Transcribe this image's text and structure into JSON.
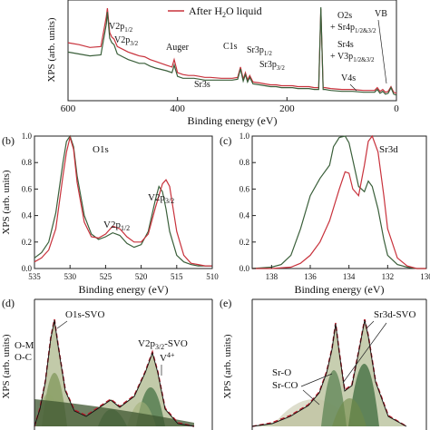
{
  "chart_data": [
    {
      "panel": "a",
      "type": "line",
      "xlabel": "Binding energy (eV)",
      "ylabel": "XPS (arb. units)",
      "xlim": [
        600,
        0
      ],
      "xticks": [
        "600",
        "400",
        "200",
        "0"
      ],
      "legend": "After H2O liquid",
      "series": [
        {
          "name": "After H2O liquid",
          "color": "#c8323c",
          "x": [
            600,
            580,
            560,
            540,
            530,
            528,
            524,
            520,
            516,
            510,
            500,
            490,
            480,
            470,
            460,
            450,
            440,
            420,
            410,
            406,
            400,
            390,
            380,
            370,
            360,
            350,
            340,
            320,
            300,
            290,
            285,
            280,
            276,
            272,
            268,
            262,
            250,
            240,
            230,
            220,
            210,
            200,
            190,
            180,
            170,
            160,
            150,
            142,
            138,
            134,
            130,
            120,
            100,
            80,
            60,
            40,
            35,
            30,
            25,
            20,
            15,
            10,
            5,
            0
          ],
          "y": [
            0.62,
            0.6,
            0.57,
            0.58,
            0.9,
            0.99,
            0.73,
            0.68,
            0.66,
            0.58,
            0.55,
            0.52,
            0.5,
            0.48,
            0.47,
            0.44,
            0.42,
            0.38,
            0.36,
            0.44,
            0.3,
            0.28,
            0.27,
            0.27,
            0.26,
            0.25,
            0.25,
            0.24,
            0.24,
            0.25,
            0.36,
            0.23,
            0.3,
            0.22,
            0.27,
            0.2,
            0.19,
            0.18,
            0.17,
            0.17,
            0.16,
            0.16,
            0.16,
            0.15,
            0.15,
            0.15,
            0.14,
            0.14,
            0.98,
            0.14,
            0.14,
            0.13,
            0.12,
            0.12,
            0.11,
            0.11,
            0.14,
            0.1,
            0.12,
            0.09,
            0.1,
            0.15,
            0.09,
            0.08
          ]
        },
        {
          "name": "",
          "color": "#3a5f3a",
          "x": [
            600,
            580,
            560,
            540,
            530,
            528,
            524,
            520,
            516,
            510,
            500,
            490,
            480,
            470,
            460,
            450,
            440,
            420,
            410,
            406,
            400,
            390,
            380,
            370,
            360,
            350,
            340,
            320,
            300,
            290,
            285,
            280,
            276,
            272,
            268,
            262,
            250,
            240,
            230,
            220,
            210,
            200,
            190,
            180,
            170,
            160,
            150,
            142,
            138,
            134,
            130,
            120,
            100,
            80,
            60,
            40,
            35,
            30,
            25,
            20,
            15,
            10,
            5,
            0
          ],
          "y": [
            0.52,
            0.5,
            0.48,
            0.49,
            0.82,
            0.95,
            0.67,
            0.62,
            0.6,
            0.5,
            0.47,
            0.44,
            0.42,
            0.4,
            0.4,
            0.37,
            0.35,
            0.32,
            0.3,
            0.38,
            0.26,
            0.24,
            0.24,
            0.24,
            0.23,
            0.22,
            0.22,
            0.22,
            0.22,
            0.23,
            0.34,
            0.21,
            0.28,
            0.2,
            0.25,
            0.18,
            0.17,
            0.16,
            0.15,
            0.15,
            0.14,
            0.14,
            0.14,
            0.13,
            0.13,
            0.13,
            0.12,
            0.12,
            1.0,
            0.12,
            0.12,
            0.11,
            0.1,
            0.1,
            0.09,
            0.09,
            0.12,
            0.08,
            0.1,
            0.07,
            0.08,
            0.14,
            0.07,
            0.06
          ]
        }
      ],
      "annotations": [
        "V2p1/2",
        "V2p3/2",
        "Auger",
        "C1s",
        "Sr3s",
        "Sr3p1/2",
        "Sr3p3/2",
        "O2s + Sr4p1/2&3/2",
        "Sr4s + V3p1/2&3/2",
        "V4s",
        "VB"
      ]
    },
    {
      "panel": "b",
      "label": "(b)",
      "type": "line",
      "xlabel": "Binding energy (eV)",
      "ylabel": "XPS (arb. units)",
      "xlim": [
        535,
        510
      ],
      "ylim": [
        0.0,
        1.0
      ],
      "xticks": [
        535,
        530,
        525,
        520,
        515,
        510
      ],
      "yticks": [
        "0.0",
        "0.2",
        "0.4",
        "0.6",
        "0.8",
        "1.0"
      ],
      "annotations": [
        "O1s",
        "V2p1/2",
        "V2p3/2"
      ],
      "series": [
        {
          "name": "",
          "color": "#3a5f3a",
          "x": [
            535,
            534,
            533,
            532,
            531,
            530.5,
            530,
            529.5,
            529,
            528,
            527,
            526,
            525,
            524,
            523,
            522,
            521,
            520,
            519,
            518,
            517.5,
            517,
            516.5,
            516,
            515,
            514,
            513,
            512,
            511,
            510
          ],
          "y": [
            0.08,
            0.12,
            0.2,
            0.42,
            0.8,
            0.96,
            1.0,
            0.92,
            0.7,
            0.4,
            0.26,
            0.22,
            0.24,
            0.27,
            0.25,
            0.19,
            0.16,
            0.18,
            0.28,
            0.52,
            0.62,
            0.58,
            0.45,
            0.28,
            0.1,
            0.05,
            0.03,
            0.02,
            0.02,
            0.02
          ]
        },
        {
          "name": "",
          "color": "#c8323c",
          "x": [
            535,
            534,
            533,
            532,
            531,
            530.5,
            530,
            529.5,
            529,
            528,
            527,
            526,
            525,
            524,
            523,
            522,
            521,
            520,
            519,
            518,
            517,
            516.5,
            516,
            515.5,
            515,
            514,
            513,
            512,
            511,
            510
          ],
          "y": [
            0.05,
            0.08,
            0.14,
            0.3,
            0.7,
            0.88,
            0.99,
            0.9,
            0.65,
            0.35,
            0.24,
            0.23,
            0.26,
            0.32,
            0.3,
            0.24,
            0.2,
            0.2,
            0.26,
            0.46,
            0.64,
            0.67,
            0.62,
            0.45,
            0.28,
            0.1,
            0.04,
            0.03,
            0.02,
            0.02
          ]
        }
      ]
    },
    {
      "panel": "c",
      "label": "(c)",
      "type": "line",
      "xlabel": "Binding energy (eV)",
      "ylabel": "",
      "xlim": [
        139,
        130
      ],
      "ylim": [
        0.0,
        1.0
      ],
      "xticks": [
        138,
        136,
        134,
        132,
        130
      ],
      "yticks": [
        "0.0",
        "0.2",
        "0.4",
        "0.6",
        "0.8",
        "1.0"
      ],
      "annotations": [
        "Sr3d"
      ],
      "series": [
        {
          "name": "",
          "color": "#3a5f3a",
          "x": [
            139,
            138,
            137.5,
            137,
            136.5,
            136,
            135.5,
            135,
            134.8,
            134.5,
            134.2,
            134,
            133.8,
            133.5,
            133.2,
            133,
            132.8,
            132.5,
            132.2,
            132,
            131.5,
            131,
            130.5,
            130
          ],
          "y": [
            0.0,
            0.01,
            0.03,
            0.1,
            0.3,
            0.55,
            0.68,
            0.78,
            0.92,
            0.99,
            1.0,
            0.95,
            0.82,
            0.62,
            0.58,
            0.66,
            0.62,
            0.45,
            0.22,
            0.1,
            0.03,
            0.01,
            0.0,
            0.0
          ]
        },
        {
          "name": "",
          "color": "#c8323c",
          "x": [
            139,
            138,
            137,
            136.5,
            136,
            135.5,
            135,
            134.5,
            134.2,
            134,
            133.8,
            133.5,
            133.2,
            133,
            132.8,
            132.5,
            132.2,
            132,
            131.5,
            131,
            130.5,
            130
          ],
          "y": [
            0.0,
            0.0,
            0.01,
            0.04,
            0.1,
            0.2,
            0.36,
            0.6,
            0.73,
            0.72,
            0.6,
            0.55,
            0.78,
            0.96,
            1.0,
            0.88,
            0.55,
            0.3,
            0.08,
            0.02,
            0.0,
            0.0
          ]
        }
      ]
    },
    {
      "panel": "d",
      "label": "(d)",
      "type": "area",
      "ylabel": "XPS (arb. units)",
      "annotations": [
        "O1s-SVO",
        "O-M",
        "O-C",
        "V2p3/2-SVO",
        "V4+"
      ]
    },
    {
      "panel": "e",
      "label": "(e)",
      "type": "area",
      "ylabel": "XPS (arb. units)",
      "annotations": [
        "Sr3d-SVO",
        "Sr-O",
        "Sr-CO"
      ]
    }
  ]
}
